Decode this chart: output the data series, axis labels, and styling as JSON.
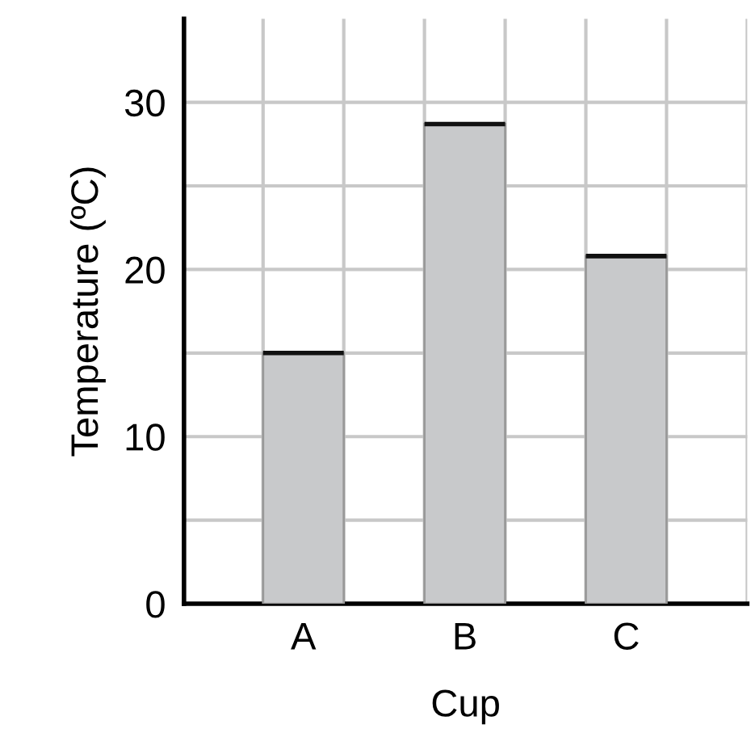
{
  "chart_data": {
    "type": "bar",
    "xlabel": "Cup",
    "ylabel": "Temperature (ºC)",
    "categories": [
      "A",
      "B",
      "C"
    ],
    "values": [
      15,
      28.7,
      20.8
    ],
    "color": "#c8c9cb",
    "ylim": [
      0,
      35
    ],
    "yticks": [
      0,
      {
        "value": 5,
        "label": null
      },
      10,
      {
        "value": 15,
        "label": null
      },
      20,
      {
        "value": 25,
        "label": null
      },
      30
    ],
    "grid": true
  }
}
